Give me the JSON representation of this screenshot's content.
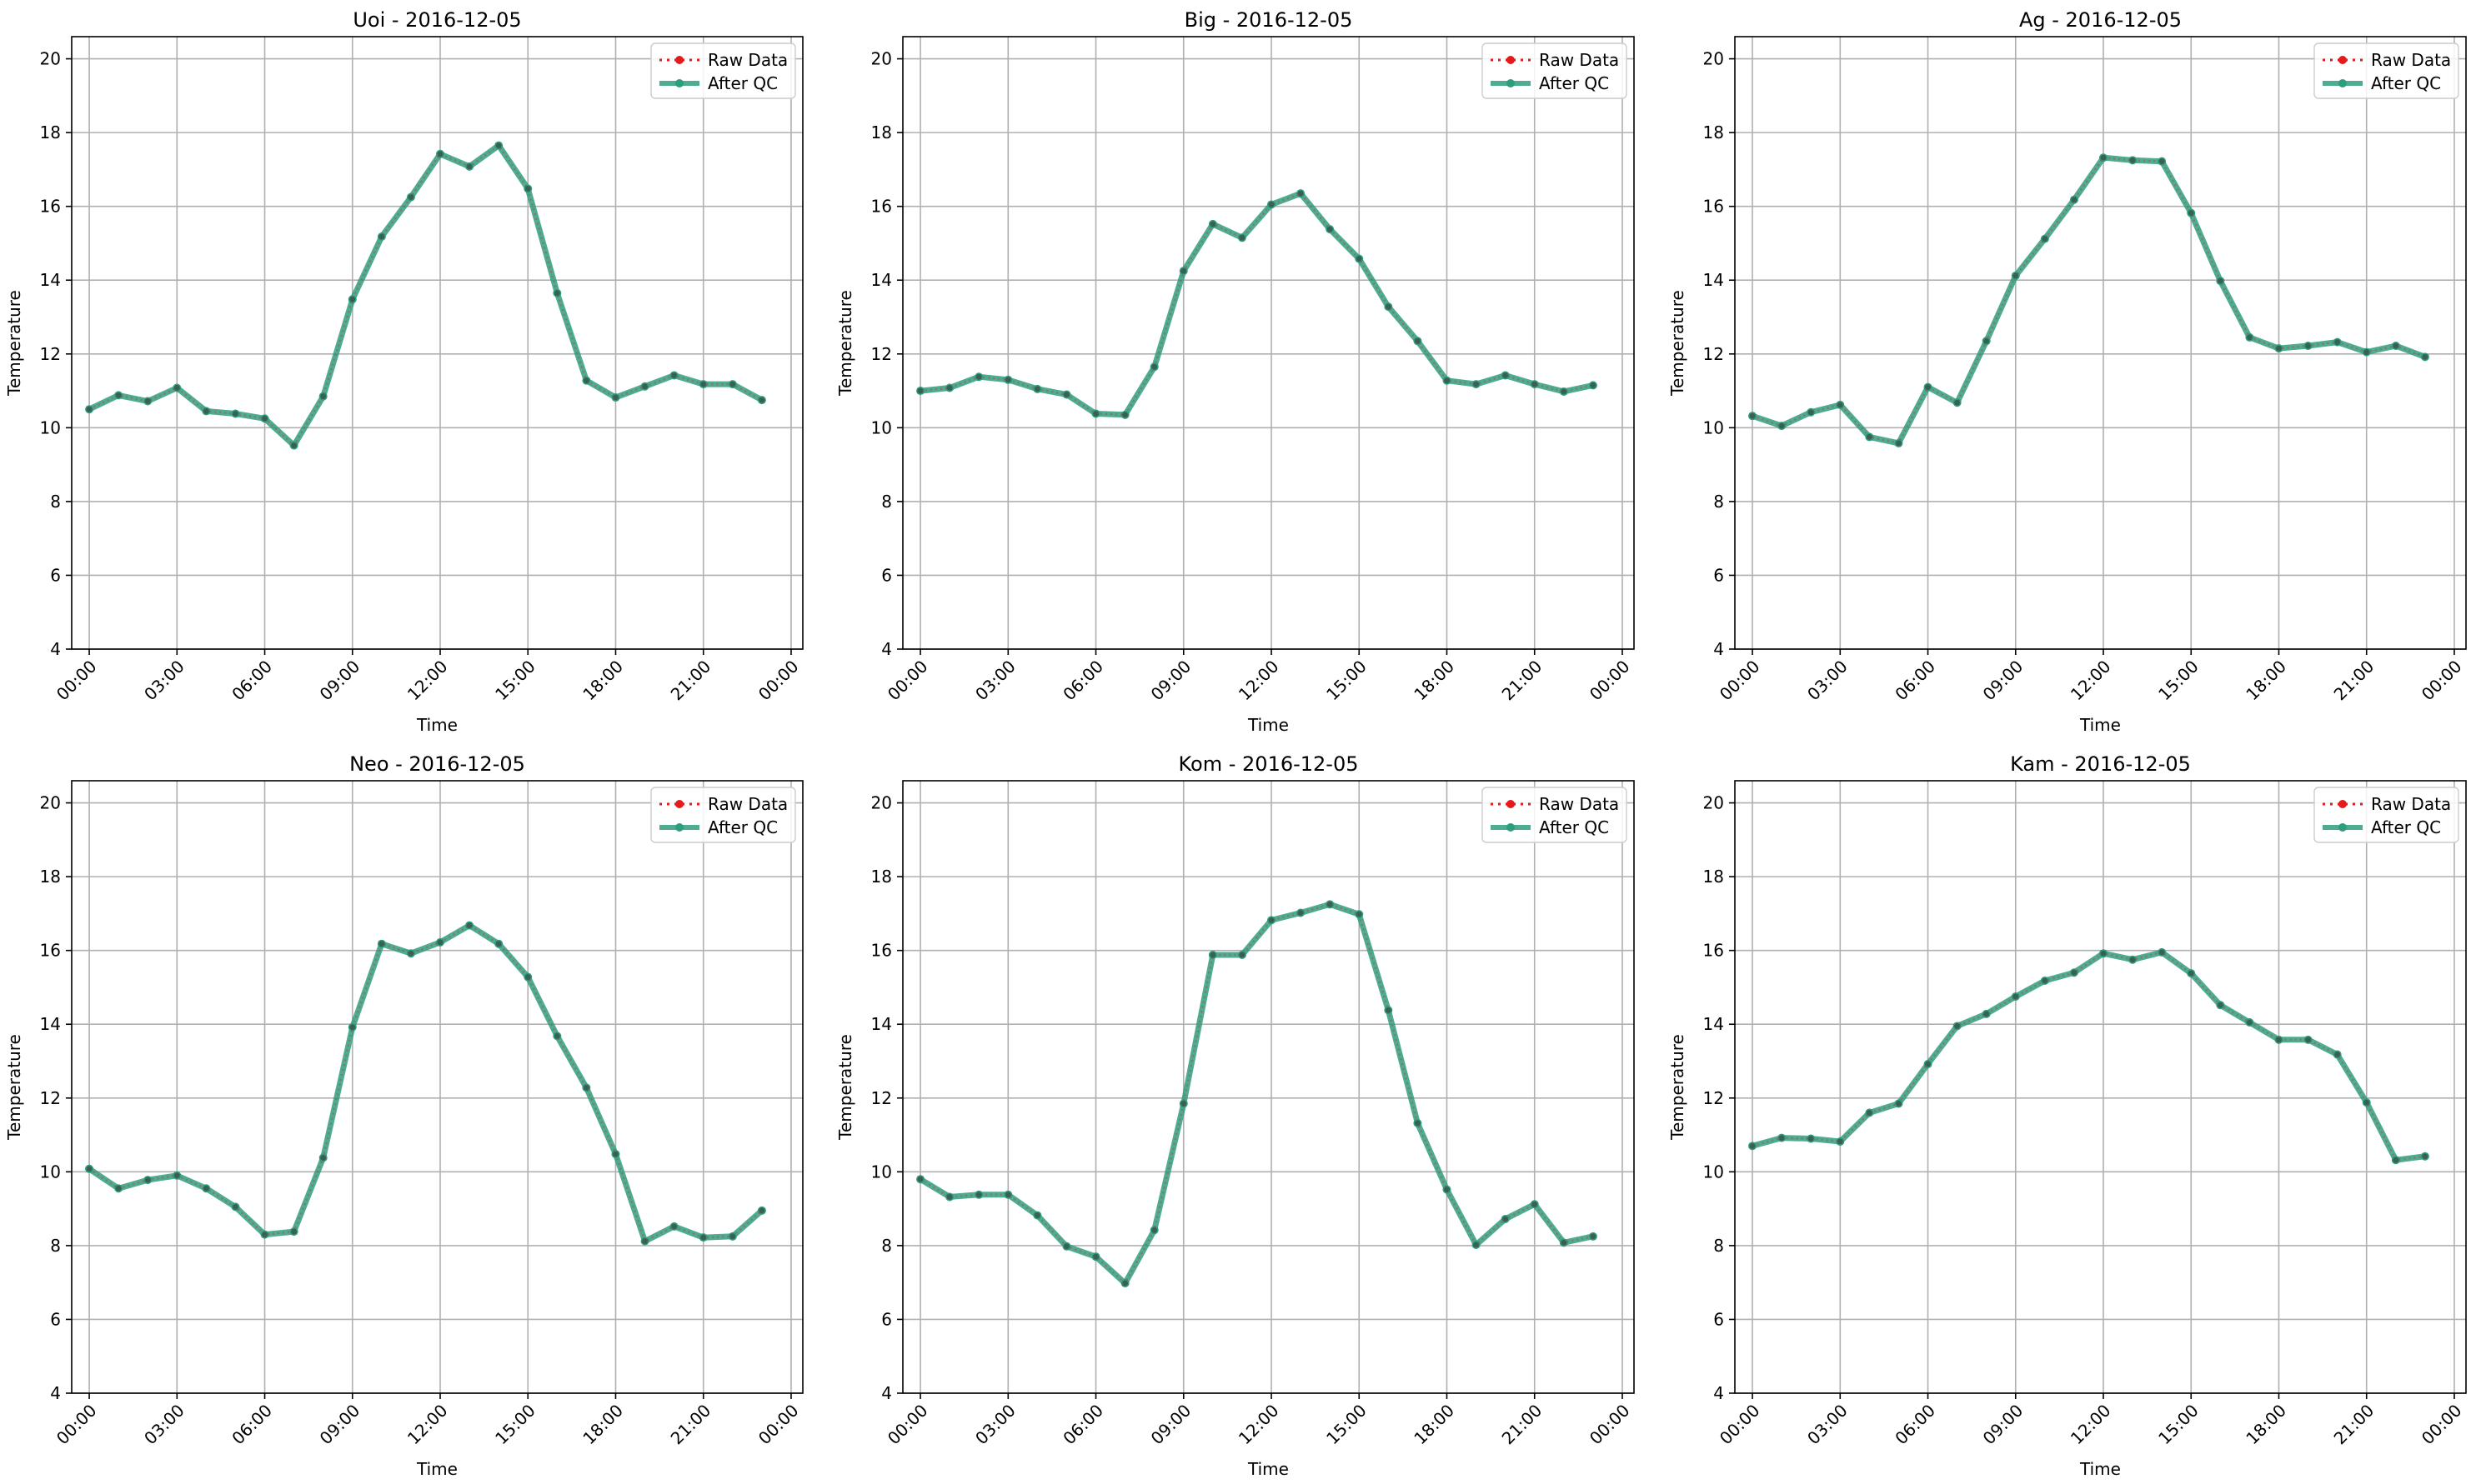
{
  "figure": {
    "legend_location": "upper right",
    "colors": {
      "raw": "#e41a1c",
      "qc": "#2e9d7e",
      "grid": "#b0b0b0",
      "axes": "#000000"
    }
  },
  "chart_data": [
    {
      "type": "line",
      "title": "Uoi - 2016-12-05",
      "xlabel": "Time",
      "ylabel": "Temperature",
      "x_ticks": [
        "00:00",
        "03:00",
        "06:00",
        "09:00",
        "12:00",
        "15:00",
        "18:00",
        "21:00",
        "00:00"
      ],
      "y_ticks": [
        "4",
        "6",
        "8",
        "10",
        "12",
        "14",
        "16",
        "18",
        "20"
      ],
      "xlim_hours": [
        -0.6,
        24.4
      ],
      "ylim": [
        4,
        20.6
      ],
      "grid": true,
      "legend": [
        "Raw Data",
        "After QC"
      ],
      "x_hours": [
        0,
        1,
        2,
        3,
        4,
        5,
        6,
        7,
        8,
        9,
        10,
        11,
        12,
        13,
        14,
        15,
        16,
        17,
        18,
        19,
        20,
        21,
        22,
        23
      ],
      "series": [
        {
          "name": "Raw Data",
          "values": [
            10.5,
            10.88,
            10.72,
            11.08,
            10.45,
            10.38,
            10.25,
            9.52,
            10.85,
            13.48,
            15.18,
            16.25,
            17.42,
            17.08,
            17.65,
            16.48,
            13.65,
            11.28,
            10.82,
            11.12,
            11.42,
            11.18,
            11.18,
            10.75
          ]
        },
        {
          "name": "After QC",
          "values": [
            10.5,
            10.88,
            10.72,
            11.08,
            10.45,
            10.38,
            10.25,
            9.52,
            10.85,
            13.48,
            15.18,
            16.25,
            17.42,
            17.08,
            17.65,
            16.48,
            13.65,
            11.28,
            10.82,
            11.12,
            11.42,
            11.18,
            11.18,
            10.75
          ]
        }
      ]
    },
    {
      "type": "line",
      "title": "Big - 2016-12-05",
      "xlabel": "Time",
      "ylabel": "Temperature",
      "x_ticks": [
        "00:00",
        "03:00",
        "06:00",
        "09:00",
        "12:00",
        "15:00",
        "18:00",
        "21:00",
        "00:00"
      ],
      "y_ticks": [
        "4",
        "6",
        "8",
        "10",
        "12",
        "14",
        "16",
        "18",
        "20"
      ],
      "xlim_hours": [
        -0.6,
        24.4
      ],
      "ylim": [
        4,
        20.6
      ],
      "grid": true,
      "legend": [
        "Raw Data",
        "After QC"
      ],
      "x_hours": [
        0,
        1,
        2,
        3,
        4,
        5,
        6,
        7,
        8,
        9,
        10,
        11,
        12,
        13,
        14,
        15,
        16,
        17,
        18,
        19,
        20,
        21,
        22,
        23
      ],
      "series": [
        {
          "name": "Raw Data",
          "values": [
            11.0,
            11.08,
            11.38,
            11.3,
            11.05,
            10.9,
            10.38,
            10.35,
            11.65,
            14.25,
            15.52,
            15.15,
            16.05,
            16.35,
            15.38,
            14.58,
            13.28,
            12.35,
            11.28,
            11.18,
            11.42,
            11.18,
            10.98,
            11.15
          ]
        },
        {
          "name": "After QC",
          "values": [
            11.0,
            11.08,
            11.38,
            11.3,
            11.05,
            10.9,
            10.38,
            10.35,
            11.65,
            14.25,
            15.52,
            15.15,
            16.05,
            16.35,
            15.38,
            14.58,
            13.28,
            12.35,
            11.28,
            11.18,
            11.42,
            11.18,
            10.98,
            11.15
          ]
        }
      ]
    },
    {
      "type": "line",
      "title": "Ag - 2016-12-05",
      "xlabel": "Time",
      "ylabel": "Temperature",
      "x_ticks": [
        "00:00",
        "03:00",
        "06:00",
        "09:00",
        "12:00",
        "15:00",
        "18:00",
        "21:00",
        "00:00"
      ],
      "y_ticks": [
        "4",
        "6",
        "8",
        "10",
        "12",
        "14",
        "16",
        "18",
        "20"
      ],
      "xlim_hours": [
        -0.6,
        24.4
      ],
      "ylim": [
        4,
        20.6
      ],
      "grid": true,
      "legend": [
        "Raw Data",
        "After QC"
      ],
      "x_hours": [
        0,
        1,
        2,
        3,
        4,
        5,
        6,
        7,
        8,
        9,
        10,
        11,
        12,
        13,
        14,
        15,
        16,
        17,
        18,
        19,
        20,
        21,
        22,
        23
      ],
      "series": [
        {
          "name": "Raw Data",
          "values": [
            10.32,
            10.05,
            10.42,
            10.62,
            9.75,
            9.58,
            11.1,
            10.68,
            12.35,
            14.12,
            15.12,
            16.18,
            17.32,
            17.25,
            17.22,
            15.82,
            13.98,
            12.45,
            12.15,
            12.22,
            12.32,
            12.05,
            12.22,
            11.92
          ]
        },
        {
          "name": "After QC",
          "values": [
            10.32,
            10.05,
            10.42,
            10.62,
            9.75,
            9.58,
            11.1,
            10.68,
            12.35,
            14.12,
            15.12,
            16.18,
            17.32,
            17.25,
            17.22,
            15.82,
            13.98,
            12.45,
            12.15,
            12.22,
            12.32,
            12.05,
            12.22,
            11.92
          ]
        }
      ]
    },
    {
      "type": "line",
      "title": "Neo - 2016-12-05",
      "xlabel": "Time",
      "ylabel": "Temperature",
      "x_ticks": [
        "00:00",
        "03:00",
        "06:00",
        "09:00",
        "12:00",
        "15:00",
        "18:00",
        "21:00",
        "00:00"
      ],
      "y_ticks": [
        "4",
        "6",
        "8",
        "10",
        "12",
        "14",
        "16",
        "18",
        "20"
      ],
      "xlim_hours": [
        -0.6,
        24.4
      ],
      "ylim": [
        4,
        20.6
      ],
      "grid": true,
      "legend": [
        "Raw Data",
        "After QC"
      ],
      "x_hours": [
        0,
        1,
        2,
        3,
        4,
        5,
        6,
        7,
        8,
        9,
        10,
        11,
        12,
        13,
        14,
        15,
        16,
        17,
        18,
        19,
        20,
        21,
        22,
        23
      ],
      "series": [
        {
          "name": "Raw Data",
          "values": [
            10.08,
            9.55,
            9.78,
            9.9,
            9.55,
            9.05,
            8.3,
            8.38,
            10.38,
            13.92,
            16.18,
            15.92,
            16.22,
            16.68,
            16.18,
            15.28,
            13.68,
            12.28,
            10.48,
            8.12,
            8.52,
            8.22,
            8.25,
            8.95
          ]
        },
        {
          "name": "After QC",
          "values": [
            10.08,
            9.55,
            9.78,
            9.9,
            9.55,
            9.05,
            8.3,
            8.38,
            10.38,
            13.92,
            16.18,
            15.92,
            16.22,
            16.68,
            16.18,
            15.28,
            13.68,
            12.28,
            10.48,
            8.12,
            8.52,
            8.22,
            8.25,
            8.95
          ]
        }
      ]
    },
    {
      "type": "line",
      "title": "Kom - 2016-12-05",
      "xlabel": "Time",
      "ylabel": "Temperature",
      "x_ticks": [
        "00:00",
        "03:00",
        "06:00",
        "09:00",
        "12:00",
        "15:00",
        "18:00",
        "21:00",
        "00:00"
      ],
      "y_ticks": [
        "4",
        "6",
        "8",
        "10",
        "12",
        "14",
        "16",
        "18",
        "20"
      ],
      "xlim_hours": [
        -0.6,
        24.4
      ],
      "ylim": [
        4,
        20.6
      ],
      "grid": true,
      "legend": [
        "Raw Data",
        "After QC"
      ],
      "x_hours": [
        0,
        1,
        2,
        3,
        4,
        5,
        6,
        7,
        8,
        9,
        10,
        11,
        12,
        13,
        14,
        15,
        16,
        17,
        18,
        19,
        20,
        21,
        22,
        23
      ],
      "series": [
        {
          "name": "Raw Data",
          "values": [
            9.8,
            9.32,
            9.38,
            9.38,
            8.82,
            7.98,
            7.7,
            6.98,
            8.42,
            11.85,
            15.88,
            15.88,
            16.82,
            17.02,
            17.25,
            16.98,
            14.38,
            11.32,
            9.52,
            8.02,
            8.72,
            9.12,
            8.08,
            8.25
          ]
        },
        {
          "name": "After QC",
          "values": [
            9.8,
            9.32,
            9.38,
            9.38,
            8.82,
            7.98,
            7.7,
            6.98,
            8.42,
            11.85,
            15.88,
            15.88,
            16.82,
            17.02,
            17.25,
            16.98,
            14.38,
            11.32,
            9.52,
            8.02,
            8.72,
            9.12,
            8.08,
            8.25
          ]
        }
      ]
    },
    {
      "type": "line",
      "title": "Kam - 2016-12-05",
      "xlabel": "Time",
      "ylabel": "Temperature",
      "x_ticks": [
        "00:00",
        "03:00",
        "06:00",
        "09:00",
        "12:00",
        "15:00",
        "18:00",
        "21:00",
        "00:00"
      ],
      "y_ticks": [
        "4",
        "6",
        "8",
        "10",
        "12",
        "14",
        "16",
        "18",
        "20"
      ],
      "xlim_hours": [
        -0.6,
        24.4
      ],
      "ylim": [
        4,
        20.6
      ],
      "grid": true,
      "legend": [
        "Raw Data",
        "After QC"
      ],
      "x_hours": [
        0,
        1,
        2,
        3,
        4,
        5,
        6,
        7,
        8,
        9,
        10,
        11,
        12,
        13,
        14,
        15,
        16,
        17,
        18,
        19,
        20,
        21,
        22,
        23
      ],
      "series": [
        {
          "name": "Raw Data",
          "values": [
            10.7,
            10.92,
            10.9,
            10.82,
            11.6,
            11.85,
            12.92,
            13.95,
            14.28,
            14.75,
            15.18,
            15.4,
            15.92,
            15.75,
            15.95,
            15.38,
            14.52,
            14.05,
            13.58,
            13.58,
            13.18,
            11.88,
            10.32,
            10.42
          ]
        },
        {
          "name": "After QC",
          "values": [
            10.7,
            10.92,
            10.9,
            10.82,
            11.6,
            11.85,
            12.92,
            13.95,
            14.28,
            14.75,
            15.18,
            15.4,
            15.92,
            15.75,
            15.95,
            15.38,
            14.52,
            14.05,
            13.58,
            13.58,
            13.18,
            11.88,
            10.32,
            10.42
          ]
        }
      ]
    }
  ]
}
